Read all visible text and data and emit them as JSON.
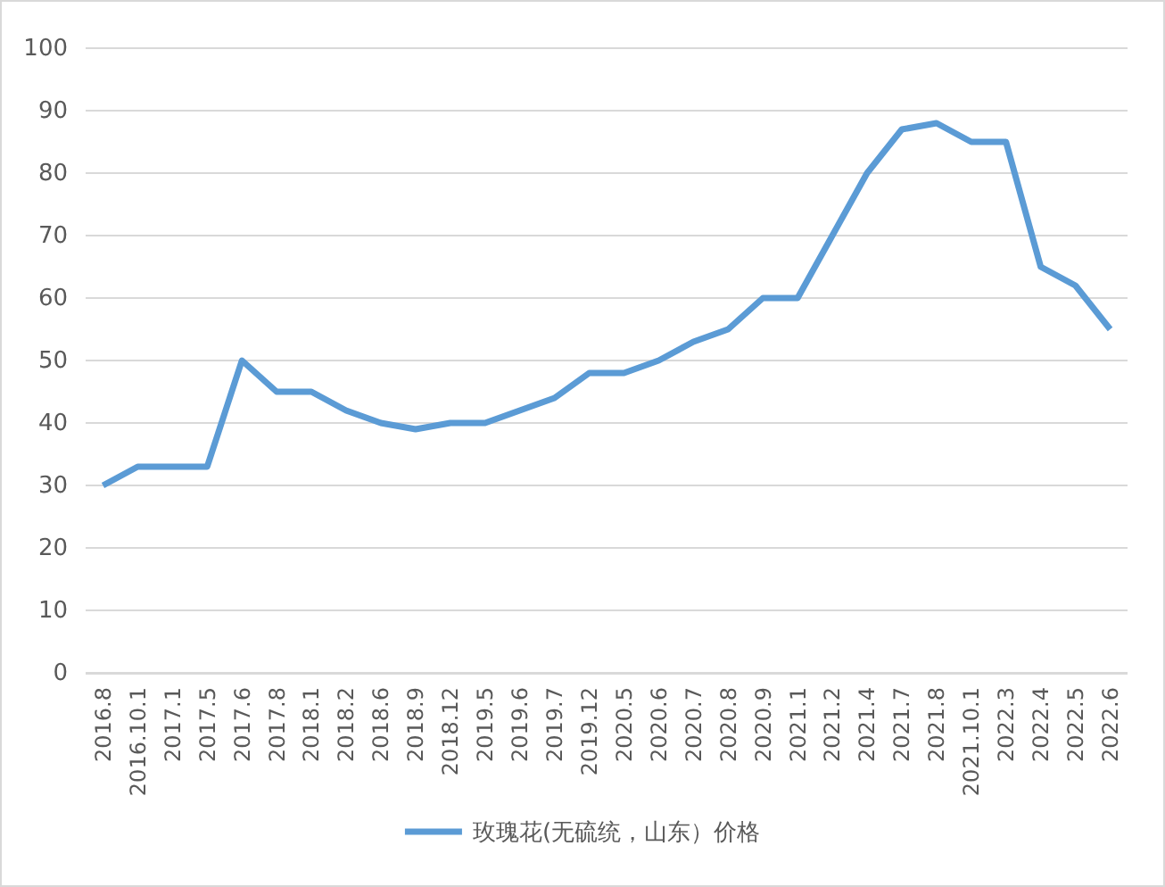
{
  "chart_data": {
    "type": "line",
    "categories": [
      "2016.8",
      "2016.10.1",
      "2017.1",
      "2017.5",
      "2017.6",
      "2017.8",
      "2018.1",
      "2018.2",
      "2018.6",
      "2018.9",
      "2018.12",
      "2019.5",
      "2019.6",
      "2019.7",
      "2019.12",
      "2020.5",
      "2020.6",
      "2020.7",
      "2020.8",
      "2020.9",
      "2021.1",
      "2021.2",
      "2021.4",
      "2021.7",
      "2021.8",
      "2021.10.1",
      "2022.3",
      "2022.4",
      "2022.5",
      "2022.6"
    ],
    "series": [
      {
        "name": "玫瑰花(无硫统，山东）价格",
        "color": "#5b9bd5",
        "values": [
          30,
          33,
          33,
          33,
          50,
          45,
          45,
          42,
          40,
          39,
          40,
          40,
          42,
          44,
          48,
          48,
          50,
          53,
          55,
          60,
          60,
          70,
          80,
          87,
          88,
          85,
          85,
          65,
          62,
          55
        ]
      }
    ],
    "ylim": [
      0,
      100
    ],
    "yticks": [
      0,
      10,
      20,
      30,
      40,
      50,
      60,
      70,
      80,
      90,
      100
    ],
    "grid": "y",
    "legend": "bottom",
    "marker": "none",
    "line_style": "solid"
  }
}
